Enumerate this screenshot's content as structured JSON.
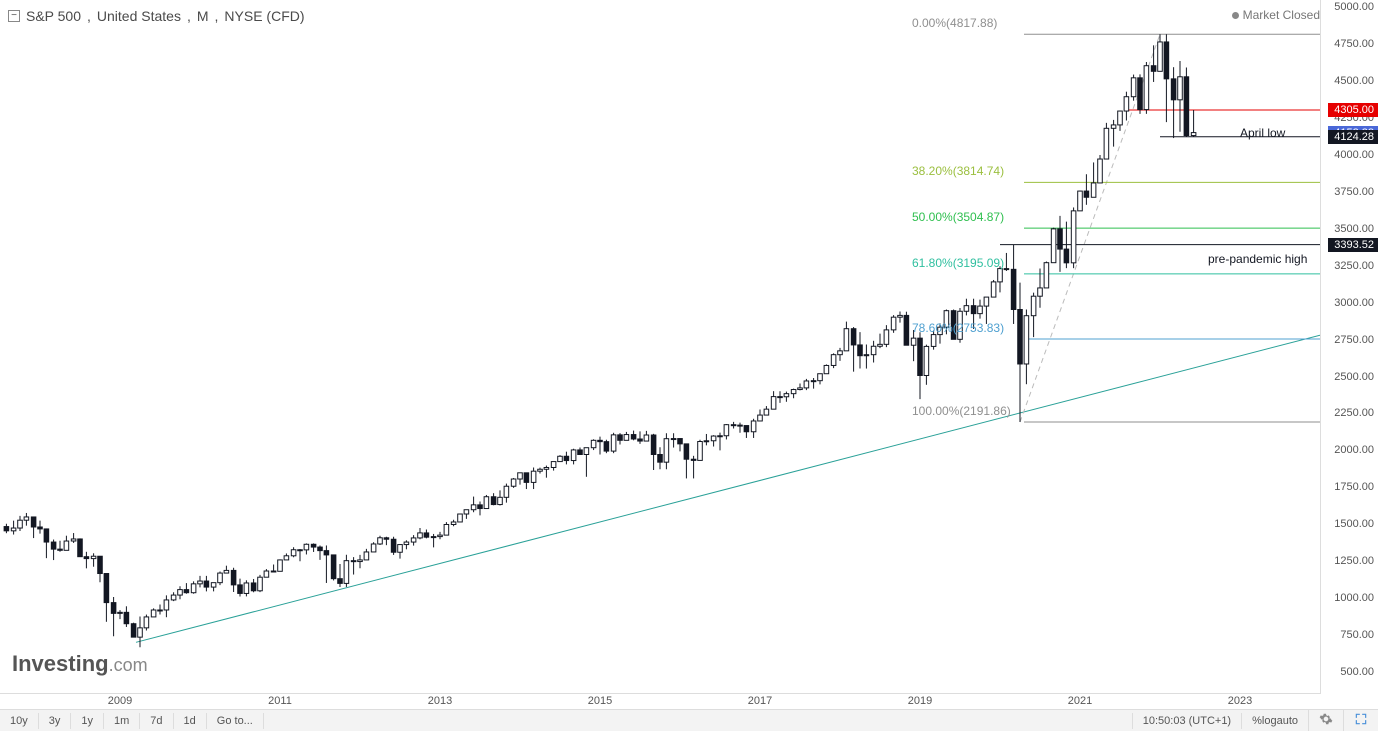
{
  "header": {
    "symbol": "S&P 500",
    "country": "United States",
    "interval": "M",
    "exchange": "NYSE (CFD)",
    "market_status": "Market Closed"
  },
  "watermark": {
    "brand": "Investing",
    "suffix": ".com"
  },
  "y_axis": {
    "min": 350,
    "max": 5050,
    "ticks": [
      500.0,
      750.0,
      1000.0,
      1250.0,
      1500.0,
      1750.0,
      2000.0,
      2250.0,
      2500.0,
      2750.0,
      3000.0,
      3250.0,
      3500.0,
      3750.0,
      4000.0,
      4250.0,
      4500.0,
      4750.0,
      5000.0
    ],
    "tick_color": "#555555",
    "tick_fontsize": 11
  },
  "x_axis": {
    "start": 2007.5,
    "end": 2024.0,
    "ticks": [
      2009,
      2011,
      2013,
      2015,
      2017,
      2019,
      2021,
      2023
    ],
    "tick_color": "#555555",
    "tick_fontsize": 11
  },
  "price_tags": [
    {
      "value": 4305.0,
      "label": "4305.00",
      "bg": "#e60000"
    },
    {
      "value": 4152.38,
      "label": "4152.38",
      "bg": "#4a68d8"
    },
    {
      "value": 4124.28,
      "label": "4124.28",
      "bg": "#131722"
    },
    {
      "value": 3393.52,
      "label": "3393.52",
      "bg": "#131722"
    }
  ],
  "annotations": [
    {
      "text": "April low",
      "price": 4140,
      "x_year": 2023.0,
      "align": "right",
      "color": "#131722"
    },
    {
      "text": "pre-pandemic high",
      "price": 3290,
      "x_year": 2022.6,
      "align": "right",
      "color": "#131722"
    }
  ],
  "fib_levels": [
    {
      "pct": "0.00%",
      "value": 4817.88,
      "color": "#8f8f8f",
      "label_x_year": 2018.9,
      "line_x_start": 2020.3,
      "line_x_end": 2024.0
    },
    {
      "pct": "38.20%",
      "value": 3814.74,
      "color": "#9bbf3f",
      "label_x_year": 2018.9,
      "line_x_start": 2020.3,
      "line_x_end": 2024.0
    },
    {
      "pct": "50.00%",
      "value": 3504.87,
      "color": "#2fbf4f",
      "label_x_year": 2018.9,
      "line_x_start": 2020.3,
      "line_x_end": 2024.0
    },
    {
      "pct": "61.80%",
      "value": 3195.09,
      "color": "#2fbf9f",
      "label_x_year": 2018.9,
      "line_x_start": 2020.3,
      "line_x_end": 2024.0
    },
    {
      "pct": "78.60%",
      "value": 2753.83,
      "color": "#4fa0d0",
      "label_x_year": 2018.9,
      "line_x_start": 2020.3,
      "line_x_end": 2024.0
    },
    {
      "pct": "100.00%",
      "value": 2191.86,
      "color": "#8f8f8f",
      "label_x_year": 2018.9,
      "line_x_start": 2020.3,
      "line_x_end": 2024.0
    }
  ],
  "horizontal_lines": [
    {
      "price": 4305.0,
      "color": "#e60000",
      "x_start": 2021.6,
      "x_end": 2024.0,
      "width": 1
    },
    {
      "price": 4124.28,
      "color": "#131722",
      "x_start": 2022.0,
      "x_end": 2024.0,
      "width": 1
    },
    {
      "price": 3393.52,
      "color": "#131722",
      "x_start": 2020.0,
      "x_end": 2024.0,
      "width": 1
    }
  ],
  "trendline": {
    "x1_year": 2009.2,
    "y1_price": 700,
    "x2_year": 2024.0,
    "y2_price": 2780,
    "color": "#2aa198",
    "width": 1
  },
  "fib_trend": {
    "x1_year": 2020.25,
    "y1_price": 2191.86,
    "x2_year": 2022.0,
    "y2_price": 4817.88,
    "color": "#bbbbbb",
    "dash": "5,4",
    "width": 1
  },
  "candles_color": "#131722",
  "candles": [
    [
      2007.58,
      1484,
      1503,
      1439,
      1455
    ],
    [
      2007.67,
      1455,
      1524,
      1430,
      1474
    ],
    [
      2007.75,
      1474,
      1556,
      1454,
      1527
    ],
    [
      2007.83,
      1527,
      1576,
      1490,
      1549
    ],
    [
      2007.92,
      1549,
      1552,
      1406,
      1481
    ],
    [
      2008.0,
      1481,
      1524,
      1436,
      1468
    ],
    [
      2008.08,
      1468,
      1471,
      1270,
      1379
    ],
    [
      2008.17,
      1379,
      1396,
      1257,
      1331
    ],
    [
      2008.25,
      1331,
      1388,
      1313,
      1323
    ],
    [
      2008.33,
      1323,
      1422,
      1324,
      1386
    ],
    [
      2008.42,
      1386,
      1440,
      1373,
      1400
    ],
    [
      2008.5,
      1400,
      1404,
      1280,
      1280
    ],
    [
      2008.58,
      1280,
      1313,
      1201,
      1267
    ],
    [
      2008.67,
      1267,
      1303,
      1212,
      1283
    ],
    [
      2008.75,
      1283,
      1265,
      1107,
      1166
    ],
    [
      2008.83,
      1166,
      1044,
      839,
      969
    ],
    [
      2008.92,
      969,
      1007,
      741,
      896
    ],
    [
      2009.0,
      896,
      918,
      857,
      903
    ],
    [
      2009.08,
      903,
      944,
      804,
      826
    ],
    [
      2009.17,
      826,
      833,
      735,
      735
    ],
    [
      2009.25,
      735,
      875,
      667,
      798
    ],
    [
      2009.33,
      798,
      888,
      780,
      872
    ],
    [
      2009.42,
      872,
      930,
      879,
      919
    ],
    [
      2009.5,
      919,
      956,
      888,
      919
    ],
    [
      2009.58,
      919,
      1018,
      870,
      987
    ],
    [
      2009.67,
      987,
      1039,
      979,
      1020
    ],
    [
      2009.75,
      1020,
      1080,
      992,
      1057
    ],
    [
      2009.83,
      1057,
      1101,
      1029,
      1036
    ],
    [
      2009.92,
      1036,
      1113,
      1029,
      1096
    ],
    [
      2010.0,
      1096,
      1150,
      1072,
      1115
    ],
    [
      2010.08,
      1115,
      1150,
      1045,
      1074
    ],
    [
      2010.17,
      1074,
      1105,
      1045,
      1104
    ],
    [
      2010.25,
      1104,
      1180,
      1087,
      1169
    ],
    [
      2010.33,
      1169,
      1219,
      1187,
      1187
    ],
    [
      2010.42,
      1187,
      1205,
      1041,
      1089
    ],
    [
      2010.5,
      1089,
      1131,
      1010,
      1031
    ],
    [
      2010.58,
      1031,
      1120,
      1011,
      1102
    ],
    [
      2010.67,
      1102,
      1129,
      1039,
      1049
    ],
    [
      2010.75,
      1049,
      1157,
      1040,
      1141
    ],
    [
      2010.83,
      1141,
      1196,
      1159,
      1183
    ],
    [
      2010.92,
      1183,
      1227,
      1173,
      1181
    ],
    [
      2011.0,
      1181,
      1262,
      1187,
      1258
    ],
    [
      2011.08,
      1258,
      1302,
      1258,
      1286
    ],
    [
      2011.17,
      1286,
      1344,
      1276,
      1327
    ],
    [
      2011.25,
      1327,
      1332,
      1249,
      1326
    ],
    [
      2011.33,
      1326,
      1370,
      1295,
      1364
    ],
    [
      2011.42,
      1364,
      1370,
      1312,
      1345
    ],
    [
      2011.5,
      1345,
      1356,
      1258,
      1321
    ],
    [
      2011.58,
      1321,
      1356,
      1102,
      1292
    ],
    [
      2011.67,
      1292,
      1218,
      1119,
      1131
    ],
    [
      2011.75,
      1131,
      1230,
      1075,
      1099
    ],
    [
      2011.83,
      1099,
      1293,
      1075,
      1253
    ],
    [
      2011.92,
      1253,
      1277,
      1159,
      1247
    ],
    [
      2012.0,
      1247,
      1292,
      1202,
      1258
    ],
    [
      2012.08,
      1258,
      1333,
      1258,
      1312
    ],
    [
      2012.17,
      1312,
      1378,
      1341,
      1366
    ],
    [
      2012.25,
      1366,
      1422,
      1359,
      1408
    ],
    [
      2012.33,
      1408,
      1415,
      1358,
      1398
    ],
    [
      2012.42,
      1398,
      1415,
      1292,
      1310
    ],
    [
      2012.5,
      1310,
      1363,
      1267,
      1362
    ],
    [
      2012.58,
      1362,
      1391,
      1330,
      1379
    ],
    [
      2012.67,
      1379,
      1426,
      1355,
      1407
    ],
    [
      2012.75,
      1407,
      1474,
      1398,
      1441
    ],
    [
      2012.83,
      1441,
      1464,
      1404,
      1412
    ],
    [
      2012.92,
      1412,
      1434,
      1343,
      1416
    ],
    [
      2013.0,
      1416,
      1448,
      1398,
      1426
    ],
    [
      2013.08,
      1426,
      1514,
      1426,
      1498
    ],
    [
      2013.17,
      1498,
      1530,
      1486,
      1515
    ],
    [
      2013.25,
      1515,
      1570,
      1539,
      1569
    ],
    [
      2013.33,
      1569,
      1597,
      1536,
      1598
    ],
    [
      2013.42,
      1598,
      1687,
      1581,
      1631
    ],
    [
      2013.5,
      1631,
      1654,
      1560,
      1606
    ],
    [
      2013.58,
      1606,
      1698,
      1605,
      1686
    ],
    [
      2013.67,
      1686,
      1710,
      1628,
      1633
    ],
    [
      2013.75,
      1633,
      1729,
      1627,
      1682
    ],
    [
      2013.83,
      1682,
      1775,
      1646,
      1757
    ],
    [
      2013.92,
      1757,
      1813,
      1746,
      1806
    ],
    [
      2014.0,
      1806,
      1849,
      1768,
      1848
    ],
    [
      2014.08,
      1848,
      1850,
      1738,
      1783
    ],
    [
      2014.17,
      1783,
      1884,
      1738,
      1859
    ],
    [
      2014.25,
      1859,
      1883,
      1843,
      1872
    ],
    [
      2014.33,
      1872,
      1897,
      1815,
      1884
    ],
    [
      2014.42,
      1884,
      1924,
      1863,
      1924
    ],
    [
      2014.5,
      1924,
      1968,
      1926,
      1960
    ],
    [
      2014.58,
      1960,
      1991,
      1905,
      1931
    ],
    [
      2014.67,
      1931,
      2011,
      1905,
      2003
    ],
    [
      2014.75,
      2003,
      2019,
      1979,
      1972
    ],
    [
      2014.83,
      1972,
      2018,
      1821,
      2018
    ],
    [
      2014.92,
      2018,
      2075,
      2002,
      2068
    ],
    [
      2015.0,
      2068,
      2093,
      1972,
      2059
    ],
    [
      2015.08,
      2059,
      2072,
      1981,
      1995
    ],
    [
      2015.17,
      1995,
      2119,
      1981,
      2105
    ],
    [
      2015.25,
      2105,
      2117,
      2040,
      2068
    ],
    [
      2015.33,
      2068,
      2125,
      2068,
      2107
    ],
    [
      2015.42,
      2107,
      2134,
      2068,
      2077
    ],
    [
      2015.5,
      2077,
      2129,
      2044,
      2063
    ],
    [
      2015.58,
      2063,
      2132,
      2063,
      2104
    ],
    [
      2015.67,
      2104,
      2112,
      1867,
      1972
    ],
    [
      2015.75,
      1972,
      2021,
      1872,
      1920
    ],
    [
      2015.83,
      1920,
      2116,
      1872,
      2079
    ],
    [
      2015.92,
      2079,
      2116,
      2019,
      2080
    ],
    [
      2016.0,
      2080,
      2081,
      1993,
      2044
    ],
    [
      2016.08,
      2044,
      2038,
      1810,
      1940
    ],
    [
      2016.17,
      1940,
      1963,
      1810,
      1932
    ],
    [
      2016.25,
      1932,
      2072,
      1969,
      2060
    ],
    [
      2016.33,
      2060,
      2111,
      2034,
      2065
    ],
    [
      2016.42,
      2065,
      2103,
      2026,
      2097
    ],
    [
      2016.5,
      2097,
      2120,
      2000,
      2099
    ],
    [
      2016.58,
      2099,
      2178,
      2074,
      2174
    ],
    [
      2016.67,
      2174,
      2193,
      2148,
      2171
    ],
    [
      2016.75,
      2171,
      2188,
      2119,
      2168
    ],
    [
      2016.83,
      2168,
      2169,
      2084,
      2126
    ],
    [
      2016.92,
      2126,
      2214,
      2084,
      2199
    ],
    [
      2017.0,
      2199,
      2277,
      2234,
      2239
    ],
    [
      2017.08,
      2239,
      2300,
      2246,
      2279
    ],
    [
      2017.17,
      2279,
      2401,
      2311,
      2364
    ],
    [
      2017.25,
      2364,
      2400,
      2322,
      2363
    ],
    [
      2017.33,
      2363,
      2398,
      2329,
      2384
    ],
    [
      2017.42,
      2384,
      2418,
      2353,
      2412
    ],
    [
      2017.5,
      2412,
      2453,
      2406,
      2423
    ],
    [
      2017.58,
      2423,
      2484,
      2408,
      2470
    ],
    [
      2017.67,
      2470,
      2490,
      2418,
      2472
    ],
    [
      2017.75,
      2472,
      2519,
      2447,
      2519
    ],
    [
      2017.83,
      2519,
      2582,
      2521,
      2575
    ],
    [
      2017.92,
      2575,
      2657,
      2557,
      2648
    ],
    [
      2018.0,
      2648,
      2694,
      2606,
      2674
    ],
    [
      2018.08,
      2674,
      2872,
      2683,
      2824
    ],
    [
      2018.17,
      2824,
      2835,
      2533,
      2714
    ],
    [
      2018.25,
      2714,
      2801,
      2554,
      2641
    ],
    [
      2018.33,
      2641,
      2717,
      2554,
      2648
    ],
    [
      2018.42,
      2648,
      2742,
      2595,
      2705
    ],
    [
      2018.5,
      2705,
      2791,
      2692,
      2718
    ],
    [
      2018.58,
      2718,
      2848,
      2699,
      2816
    ],
    [
      2018.67,
      2816,
      2916,
      2796,
      2902
    ],
    [
      2018.75,
      2902,
      2940,
      2865,
      2914
    ],
    [
      2018.83,
      2914,
      2939,
      2711,
      2712
    ],
    [
      2018.92,
      2712,
      2815,
      2604,
      2760
    ],
    [
      2019.0,
      2760,
      2800,
      2347,
      2507
    ],
    [
      2019.08,
      2507,
      2716,
      2444,
      2704
    ],
    [
      2019.17,
      2704,
      2813,
      2682,
      2784
    ],
    [
      2019.25,
      2784,
      2860,
      2723,
      2834
    ],
    [
      2019.33,
      2834,
      2954,
      2786,
      2946
    ],
    [
      2019.42,
      2946,
      2954,
      2801,
      2752
    ],
    [
      2019.5,
      2752,
      2964,
      2729,
      2942
    ],
    [
      2019.58,
      2942,
      3027,
      2914,
      2980
    ],
    [
      2019.67,
      2980,
      3027,
      2822,
      2926
    ],
    [
      2019.75,
      2926,
      3021,
      2892,
      2977
    ],
    [
      2019.83,
      2977,
      3037,
      2856,
      3038
    ],
    [
      2019.92,
      3038,
      3154,
      3037,
      3141
    ],
    [
      2020.0,
      3141,
      3247,
      3070,
      3231
    ],
    [
      2020.08,
      3231,
      3337,
      3215,
      3226
    ],
    [
      2020.17,
      3226,
      3393,
      2856,
      2954
    ],
    [
      2020.25,
      2954,
      3136,
      2192,
      2585
    ],
    [
      2020.33,
      2585,
      2954,
      2448,
      2912
    ],
    [
      2020.42,
      2912,
      3068,
      2767,
      3044
    ],
    [
      2020.5,
      3044,
      3232,
      2966,
      3100
    ],
    [
      2020.58,
      3100,
      3279,
      3116,
      3271
    ],
    [
      2020.67,
      3271,
      3508,
      3285,
      3500
    ],
    [
      2020.75,
      3500,
      3588,
      3209,
      3363
    ],
    [
      2020.83,
      3363,
      3549,
      3234,
      3270
    ],
    [
      2020.92,
      3270,
      3645,
      3234,
      3622
    ],
    [
      2021.0,
      3622,
      3760,
      3633,
      3756
    ],
    [
      2021.08,
      3756,
      3870,
      3663,
      3714
    ],
    [
      2021.17,
      3714,
      3950,
      3723,
      3811
    ],
    [
      2021.25,
      3811,
      4000,
      3854,
      3973
    ],
    [
      2021.33,
      3973,
      4218,
      4057,
      4181
    ],
    [
      2021.42,
      4181,
      4238,
      4057,
      4204
    ],
    [
      2021.5,
      4204,
      4302,
      4164,
      4298
    ],
    [
      2021.58,
      4298,
      4429,
      4234,
      4395
    ],
    [
      2021.67,
      4395,
      4545,
      4368,
      4523
    ],
    [
      2021.75,
      4523,
      4546,
      4279,
      4308
    ],
    [
      2021.83,
      4308,
      4630,
      4279,
      4605
    ],
    [
      2021.92,
      4605,
      4743,
      4495,
      4567
    ],
    [
      2022.0,
      4567,
      4818,
      4662,
      4766
    ],
    [
      2022.08,
      4766,
      4818,
      4223,
      4516
    ],
    [
      2022.17,
      4516,
      4595,
      4115,
      4374
    ],
    [
      2022.25,
      4374,
      4637,
      4158,
      4530
    ],
    [
      2022.33,
      4530,
      4593,
      4124,
      4132
    ],
    [
      2022.42,
      4132,
      4305,
      4125,
      4152
    ]
  ],
  "toolbar": {
    "ranges": [
      "10y",
      "3y",
      "1y",
      "1m",
      "7d",
      "1d"
    ],
    "goto": "Go to...",
    "time": "10:50:03 (UTC+1)",
    "btns": [
      "%",
      "log",
      "auto"
    ]
  }
}
